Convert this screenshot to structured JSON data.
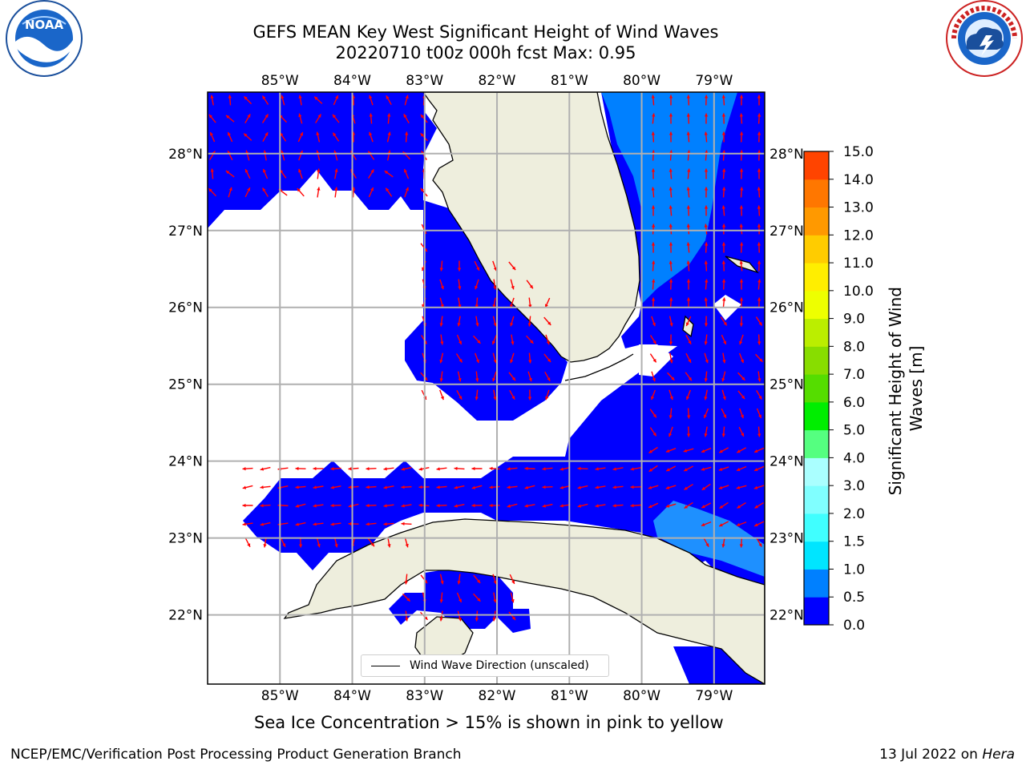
{
  "title": {
    "line1": "GEFS MEAN Key West Significant Height of Wind Waves",
    "line2": "20220710 t00z 000h fcst   Max: 0.95"
  },
  "logos": {
    "noaa_text": "NOAA",
    "noaa_ring": "NATIONAL OCEANIC AND ATMOSPHERIC ADMINISTRATION · U.S. DEPARTMENT OF COMMERCE",
    "nws_ring": "NATIONAL WEATHER SERVICE"
  },
  "map": {
    "lon_labels": [
      "85°W",
      "84°W",
      "83°W",
      "82°W",
      "81°W",
      "80°W",
      "79°W"
    ],
    "lat_labels": [
      "28°N",
      "27°N",
      "26°N",
      "25°N",
      "24°N",
      "23°N",
      "22°N"
    ],
    "lon_values": [
      -85,
      -84,
      -83,
      -82,
      -81,
      -80,
      -79
    ],
    "lat_values": [
      28,
      27,
      26,
      25,
      24,
      23,
      22
    ],
    "extent": {
      "lon": [
        -86,
        -78.3
      ],
      "lat": [
        21.1,
        28.8
      ]
    },
    "gridlines": true,
    "land_color": "#eeeedd",
    "wave_fill_color": "#0000ff",
    "wave_fill_light": "#0080ff",
    "wave_fill_lighter": "#1e90ff",
    "arrow_color": "#ff0000"
  },
  "legend": {
    "label": "Wind Wave Direction (unscaled)",
    "placement": "bottom-center"
  },
  "colorbar": {
    "label_line1": "Significant Height of Wind",
    "label_line2": "Waves [m]",
    "ticks": [
      "0.0",
      "0.5",
      "1.0",
      "1.5",
      "2.0",
      "3.0",
      "4.0",
      "5.0",
      "6.0",
      "7.0",
      "8.0",
      "9.0",
      "10.0",
      "11.0",
      "12.0",
      "13.0",
      "14.0",
      "15.0"
    ],
    "colors": [
      "#0000ff",
      "#0080ff",
      "#00e5ff",
      "#40ffff",
      "#80ffff",
      "#aaffff",
      "#55ff80",
      "#00ee00",
      "#55dd00",
      "#88dd00",
      "#bbee00",
      "#eeff00",
      "#ffee00",
      "#ffcc00",
      "#ff9900",
      "#ff7700",
      "#ff4400",
      "#ff0000"
    ]
  },
  "caption": "Sea Ice Concentration > 15% is shown in pink to yellow",
  "footer": {
    "left": "NCEP/EMC/Verification Post Processing Product Generation Branch",
    "right_date": "13 Jul 2022 on",
    "right_host": "Hera"
  }
}
